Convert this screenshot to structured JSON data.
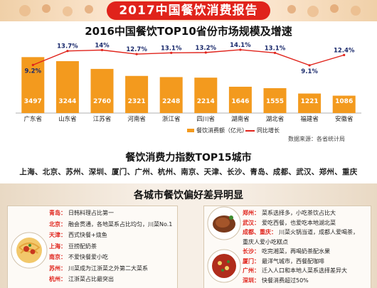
{
  "banner": {
    "title": "2017中国餐饮消费报告"
  },
  "colors": {
    "bar": "#f39a1e",
    "line": "#e0231b",
    "title_bg": "#e0231b",
    "city_label": "#e0231b"
  },
  "chart_data": {
    "type": "bar",
    "title": "2016中国餐饮TOP10省份市场规模及增速",
    "categories": [
      "广东省",
      "山东省",
      "江苏省",
      "河南省",
      "浙江省",
      "四川省",
      "湖南省",
      "湖北省",
      "福建省",
      "安徽省"
    ],
    "series": [
      {
        "name": "餐饮消费额（亿元）",
        "type": "bar",
        "values": [
          3497,
          3244,
          2760,
          2321,
          2248,
          2214,
          1646,
          1555,
          1221,
          1086
        ]
      },
      {
        "name": "同比增长",
        "type": "line",
        "values": [
          9.2,
          13.7,
          14.0,
          12.7,
          13.1,
          13.2,
          14.1,
          13.1,
          9.1,
          12.4
        ],
        "labels": [
          "9.2%",
          "13.7%",
          "14%",
          "12.7%",
          "13.1%",
          "13.2%",
          "14.1%",
          "13.1%",
          "9.1%",
          "12.4%"
        ]
      }
    ],
    "ylim": [
      0,
      4000
    ],
    "line_ylim": [
      7,
      15
    ],
    "legend_position": "bottom",
    "grid": false,
    "xlabel": "",
    "ylabel": "",
    "source": "数据来源：各省统计局"
  },
  "top15": {
    "title": "餐饮消费力指数TOP15城市",
    "cities": "上海、北京、苏州、深圳、厦门、广州、杭州、南京、天津、长沙、青岛、成都、武汉、郑州、重庆"
  },
  "preferences": {
    "title": "各城市餐饮偏好差异明显",
    "left": [
      {
        "city": "青岛：",
        "text": "日韩料理占比第一"
      },
      {
        "city": "北京：",
        "text": "融会贯通，各地菜系占比均匀，川菜No.1"
      },
      {
        "city": "天津：",
        "text": "西式快餐+烧鱼"
      },
      {
        "city": "上海：",
        "text": "豆捞配奶茶"
      },
      {
        "city": "南京：",
        "text": "不爱快餐爱小吃"
      },
      {
        "city": "苏州：",
        "text": "川菜成为江浙菜之外第二大菜系"
      },
      {
        "city": "杭州：",
        "text": "江浙菜占比最突出"
      }
    ],
    "right": [
      {
        "city": "郑州：",
        "text": "菜系选择多，小吃茶饮占比大"
      },
      {
        "city": "武汉：",
        "text": "爱吃西餐，也爱吃本地湖北菜"
      },
      {
        "city": "成都、重庆：",
        "text": "川菜火锅当道，成都人爱喝茶，"
      },
      {
        "city": "",
        "text": "重庆人爱小吃糕点"
      },
      {
        "city": "长沙：",
        "text": "吃完湘菜，再喝奶茶配水果"
      },
      {
        "city": "厦门：",
        "text": "最洋气城市，西餐配咖啡"
      },
      {
        "city": "广州：",
        "text": "迁入人口和本地人菜系选择差异大"
      },
      {
        "city": "深圳：",
        "text": "快餐消费超过50%"
      }
    ]
  },
  "images": {
    "left_food": "spaghetti",
    "right_top_food": "steak",
    "right_bottom_food": "fried-rice"
  }
}
